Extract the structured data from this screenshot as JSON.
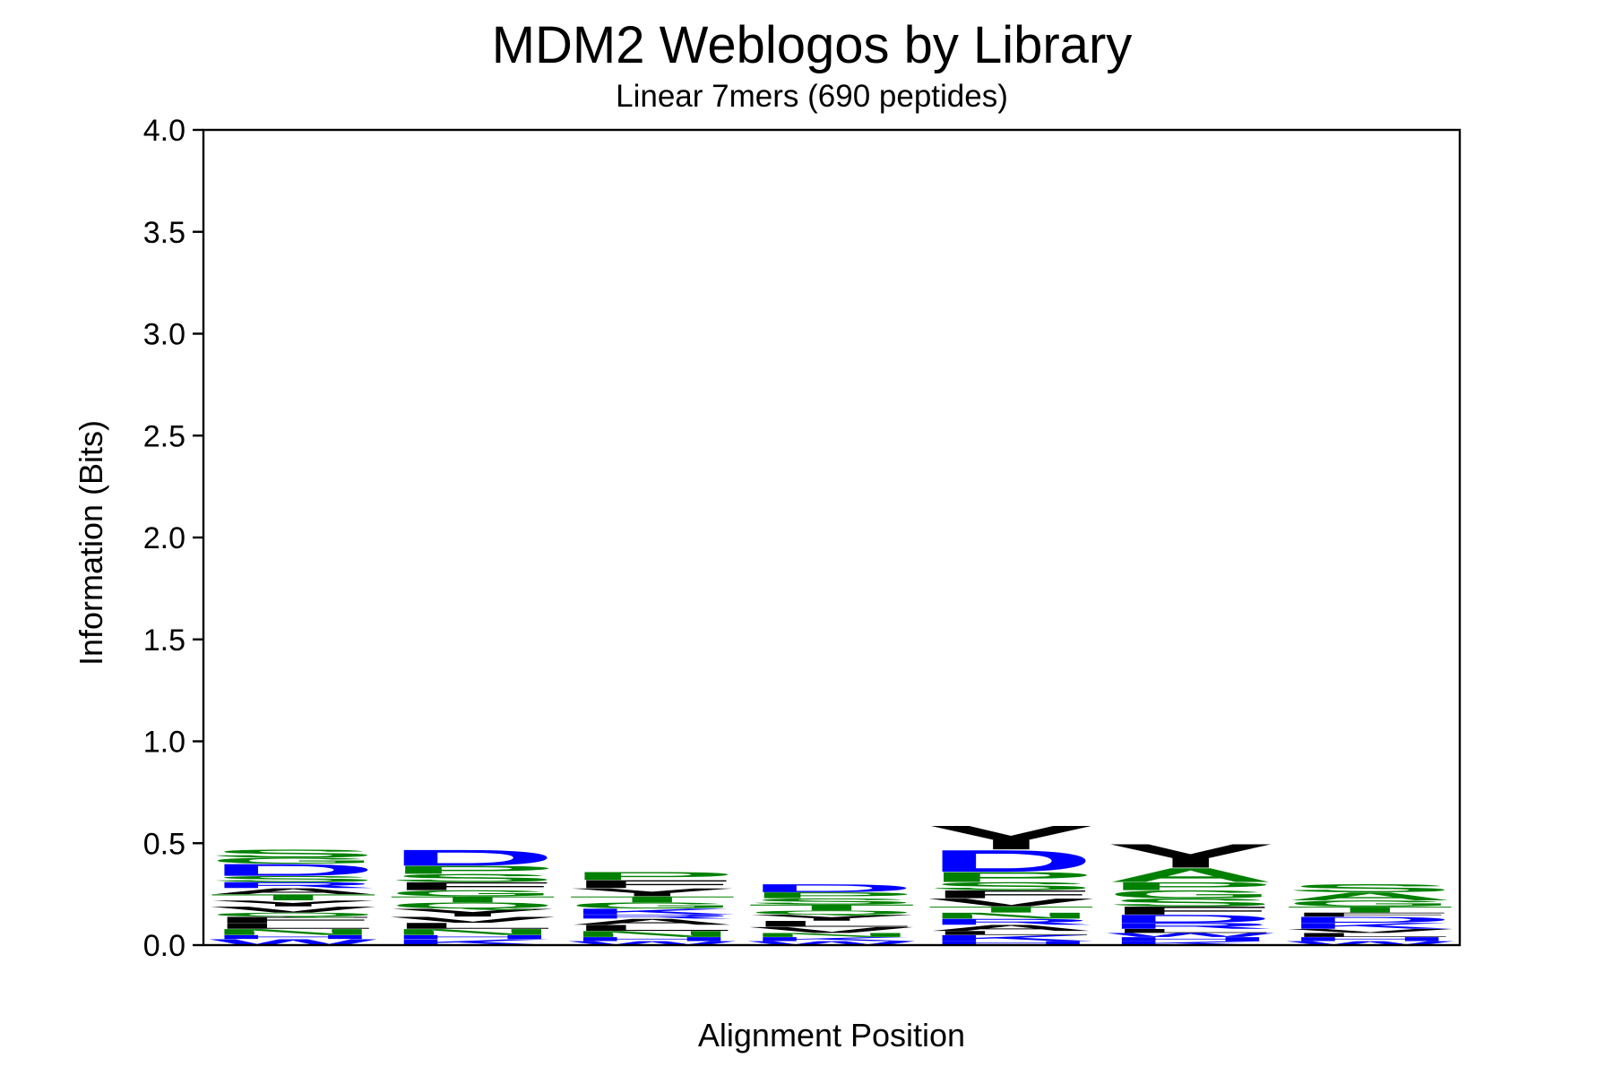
{
  "chart_data": {
    "type": "sequence_logo",
    "title": "MDM2 Weblogos by Library",
    "subtitle": "Linear 7mers (690 peptides)",
    "xlabel": "Alignment Position",
    "ylabel": "Information (Bits)",
    "ylim": [
      0,
      4.0
    ],
    "yticks": [
      "0.0",
      "0.5",
      "1.0",
      "1.5",
      "2.0",
      "2.5",
      "3.0",
      "3.5",
      "4.0"
    ],
    "grid": false,
    "colors": {
      "axis": "#000000",
      "green": "#008000",
      "blue": "#0000ff",
      "black": "#000000"
    },
    "positions": [
      {
        "position": 1,
        "stack": [
          {
            "letter": "W",
            "height": 0.03,
            "color": "#0000ff"
          },
          {
            "letter": "H",
            "height": 0.02,
            "color": "#0000ff"
          },
          {
            "letter": "N",
            "height": 0.03,
            "color": "#008000"
          },
          {
            "letter": "L",
            "height": 0.03,
            "color": "#000000"
          },
          {
            "letter": "F",
            "height": 0.03,
            "color": "#000000"
          },
          {
            "letter": "Q",
            "height": 0.02,
            "color": "#008000"
          },
          {
            "letter": "V",
            "height": 0.03,
            "color": "#000000"
          },
          {
            "letter": "Y",
            "height": 0.03,
            "color": "#000000"
          },
          {
            "letter": "T",
            "height": 0.03,
            "color": "#008000"
          },
          {
            "letter": "A",
            "height": 0.03,
            "color": "#000000"
          },
          {
            "letter": "R",
            "height": 0.03,
            "color": "#0000ff"
          },
          {
            "letter": "S",
            "height": 0.03,
            "color": "#008000"
          },
          {
            "letter": "D",
            "height": 0.06,
            "color": "#0000ff"
          },
          {
            "letter": "G",
            "height": 0.03,
            "color": "#008000"
          },
          {
            "letter": "S",
            "height": 0.04,
            "color": "#008000"
          }
        ]
      },
      {
        "position": 2,
        "stack": [
          {
            "letter": "K",
            "height": 0.03,
            "color": "#0000ff"
          },
          {
            "letter": "H",
            "height": 0.02,
            "color": "#0000ff"
          },
          {
            "letter": "N",
            "height": 0.03,
            "color": "#008000"
          },
          {
            "letter": "L",
            "height": 0.03,
            "color": "#000000"
          },
          {
            "letter": "V",
            "height": 0.03,
            "color": "#000000"
          },
          {
            "letter": "Y",
            "height": 0.04,
            "color": "#000000"
          },
          {
            "letter": "Q",
            "height": 0.03,
            "color": "#008000"
          },
          {
            "letter": "T",
            "height": 0.03,
            "color": "#008000"
          },
          {
            "letter": "G",
            "height": 0.03,
            "color": "#008000"
          },
          {
            "letter": "F",
            "height": 0.04,
            "color": "#000000"
          },
          {
            "letter": "S",
            "height": 0.04,
            "color": "#008000"
          },
          {
            "letter": "P",
            "height": 0.04,
            "color": "#008000"
          },
          {
            "letter": "D",
            "height": 0.08,
            "color": "#0000ff"
          }
        ]
      },
      {
        "position": 3,
        "stack": [
          {
            "letter": "W",
            "height": 0.02,
            "color": "#0000ff"
          },
          {
            "letter": "H",
            "height": 0.02,
            "color": "#0000ff"
          },
          {
            "letter": "N",
            "height": 0.03,
            "color": "#008000"
          },
          {
            "letter": "L",
            "height": 0.03,
            "color": "#000000"
          },
          {
            "letter": "A",
            "height": 0.03,
            "color": "#000000"
          },
          {
            "letter": "R",
            "height": 0.02,
            "color": "#0000ff"
          },
          {
            "letter": "K",
            "height": 0.03,
            "color": "#0000ff"
          },
          {
            "letter": "G",
            "height": 0.03,
            "color": "#008000"
          },
          {
            "letter": "T",
            "height": 0.03,
            "color": "#008000"
          },
          {
            "letter": "Y",
            "height": 0.04,
            "color": "#000000"
          },
          {
            "letter": "F",
            "height": 0.04,
            "color": "#000000"
          },
          {
            "letter": "P",
            "height": 0.04,
            "color": "#008000"
          }
        ]
      },
      {
        "position": 4,
        "stack": [
          {
            "letter": "W",
            "height": 0.02,
            "color": "#0000ff"
          },
          {
            "letter": "K",
            "height": 0.02,
            "color": "#0000ff"
          },
          {
            "letter": "N",
            "height": 0.02,
            "color": "#008000"
          },
          {
            "letter": "V",
            "height": 0.03,
            "color": "#000000"
          },
          {
            "letter": "L",
            "height": 0.03,
            "color": "#000000"
          },
          {
            "letter": "Y",
            "height": 0.03,
            "color": "#000000"
          },
          {
            "letter": "Q",
            "height": 0.02,
            "color": "#008000"
          },
          {
            "letter": "T",
            "height": 0.03,
            "color": "#008000"
          },
          {
            "letter": "S",
            "height": 0.03,
            "color": "#008000"
          },
          {
            "letter": "P",
            "height": 0.03,
            "color": "#008000"
          },
          {
            "letter": "D",
            "height": 0.04,
            "color": "#0000ff"
          }
        ]
      },
      {
        "position": 5,
        "stack": [
          {
            "letter": "H",
            "height": 0.02,
            "color": "#0000ff"
          },
          {
            "letter": "K",
            "height": 0.03,
            "color": "#0000ff"
          },
          {
            "letter": "L",
            "height": 0.02,
            "color": "#000000"
          },
          {
            "letter": "A",
            "height": 0.03,
            "color": "#000000"
          },
          {
            "letter": "R",
            "height": 0.03,
            "color": "#0000ff"
          },
          {
            "letter": "N",
            "height": 0.03,
            "color": "#008000"
          },
          {
            "letter": "T",
            "height": 0.03,
            "color": "#008000"
          },
          {
            "letter": "V",
            "height": 0.04,
            "color": "#000000"
          },
          {
            "letter": "F",
            "height": 0.04,
            "color": "#000000"
          },
          {
            "letter": "S",
            "height": 0.04,
            "color": "#008000"
          },
          {
            "letter": "P",
            "height": 0.05,
            "color": "#008000"
          },
          {
            "letter": "D",
            "height": 0.11,
            "color": "#0000ff"
          },
          {
            "letter": "Y",
            "height": 0.12,
            "color": "#000000"
          }
        ]
      },
      {
        "position": 6,
        "stack": [
          {
            "letter": "K",
            "height": 0.02,
            "color": "#0000ff"
          },
          {
            "letter": "H",
            "height": 0.02,
            "color": "#0000ff"
          },
          {
            "letter": "W",
            "height": 0.02,
            "color": "#0000ff"
          },
          {
            "letter": "L",
            "height": 0.02,
            "color": "#000000"
          },
          {
            "letter": "R",
            "height": 0.03,
            "color": "#0000ff"
          },
          {
            "letter": "D",
            "height": 0.04,
            "color": "#0000ff"
          },
          {
            "letter": "F",
            "height": 0.04,
            "color": "#000000"
          },
          {
            "letter": "S",
            "height": 0.04,
            "color": "#008000"
          },
          {
            "letter": "G",
            "height": 0.04,
            "color": "#008000"
          },
          {
            "letter": "P",
            "height": 0.04,
            "color": "#008000"
          },
          {
            "letter": "A",
            "height": 0.07,
            "color": "#008000"
          },
          {
            "letter": "Y",
            "height": 0.12,
            "color": "#000000"
          }
        ]
      },
      {
        "position": 7,
        "stack": [
          {
            "letter": "W",
            "height": 0.02,
            "color": "#0000ff"
          },
          {
            "letter": "H",
            "height": 0.02,
            "color": "#0000ff"
          },
          {
            "letter": "L",
            "height": 0.02,
            "color": "#000000"
          },
          {
            "letter": "V",
            "height": 0.02,
            "color": "#000000"
          },
          {
            "letter": "K",
            "height": 0.03,
            "color": "#0000ff"
          },
          {
            "letter": "D",
            "height": 0.03,
            "color": "#0000ff"
          },
          {
            "letter": "F",
            "height": 0.02,
            "color": "#000000"
          },
          {
            "letter": "T",
            "height": 0.03,
            "color": "#008000"
          },
          {
            "letter": "G",
            "height": 0.03,
            "color": "#008000"
          },
          {
            "letter": "A",
            "height": 0.04,
            "color": "#008000"
          },
          {
            "letter": "S",
            "height": 0.04,
            "color": "#008000"
          }
        ]
      }
    ]
  }
}
